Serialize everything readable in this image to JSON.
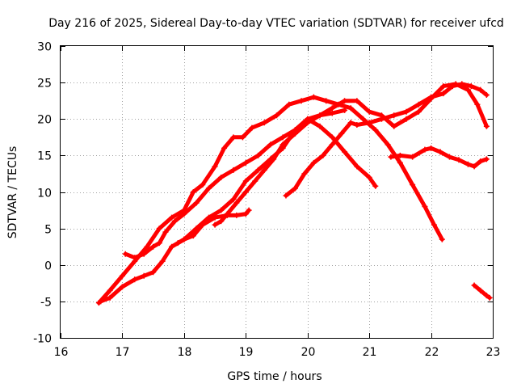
{
  "chart_data": {
    "type": "scatter",
    "title": "Day 216 of 2025, Sidereal Day-to-day VTEC variation (SDTVAR) for receiver ufcd",
    "xlabel": "GPS time / hours",
    "ylabel": "SDTVAR / TECUs",
    "xlim": [
      16,
      23
    ],
    "ylim": [
      -10,
      30
    ],
    "xticks": [
      16,
      17,
      18,
      19,
      20,
      21,
      22,
      23
    ],
    "yticks": [
      -10,
      -5,
      0,
      5,
      10,
      15,
      20,
      25,
      30
    ],
    "grid": true,
    "marker": "+",
    "color": "#ff0000",
    "series": [
      {
        "name": "arc1",
        "x": [
          16.62,
          16.8,
          17.0,
          17.2,
          17.4,
          17.6,
          17.8,
          18.0,
          18.15,
          18.3,
          18.5,
          18.65,
          18.8,
          18.95,
          19.1,
          19.3,
          19.5,
          19.7,
          19.9,
          20.1,
          20.3,
          20.5,
          20.7,
          20.9,
          21.1,
          21.3,
          21.5,
          21.7,
          21.9,
          22.05,
          22.18
        ],
        "y": [
          -5.2,
          -3.5,
          -1.5,
          0.5,
          2.5,
          5.0,
          6.5,
          7.5,
          10.0,
          11.0,
          13.5,
          16.0,
          17.5,
          17.5,
          18.8,
          19.5,
          20.5,
          22.0,
          22.5,
          23.0,
          22.5,
          22.0,
          21.5,
          20.0,
          18.5,
          16.5,
          14.0,
          11.0,
          8.0,
          5.5,
          3.5
        ]
      },
      {
        "name": "arc2",
        "x": [
          16.65,
          16.8,
          17.0,
          17.2,
          17.35,
          17.5,
          17.65,
          17.8,
          18.0,
          18.2,
          18.4,
          18.6,
          18.8,
          19.0,
          19.2,
          19.4,
          19.6,
          19.8,
          20.0,
          20.2,
          20.4,
          20.6,
          20.8,
          21.0,
          21.2,
          21.4,
          21.6,
          21.8,
          22.0,
          22.2,
          22.4,
          22.6,
          22.75,
          22.9
        ],
        "y": [
          -5.0,
          -4.5,
          -3.0,
          -2.0,
          -1.5,
          -1.0,
          0.5,
          2.5,
          3.5,
          5.0,
          6.5,
          7.5,
          9.0,
          11.5,
          13.0,
          14.5,
          16.0,
          18.5,
          20.0,
          20.5,
          21.5,
          22.5,
          22.5,
          21.0,
          20.5,
          19.0,
          20.0,
          21.0,
          22.8,
          24.5,
          24.8,
          24.0,
          22.0,
          19.0
        ]
      },
      {
        "name": "arc3",
        "x": [
          17.05,
          17.2,
          17.35,
          17.5,
          17.6,
          17.7,
          17.85,
          18.0,
          18.2,
          18.4,
          18.6,
          18.8,
          19.0,
          19.2,
          19.4,
          19.6,
          19.8,
          20.0,
          20.2,
          20.4,
          20.6,
          20.8,
          21.0,
          21.1
        ],
        "y": [
          1.5,
          1.0,
          1.5,
          2.5,
          3.0,
          4.5,
          6.0,
          7.0,
          8.5,
          10.5,
          12.0,
          13.0,
          14.0,
          15.0,
          16.5,
          17.5,
          18.5,
          20.0,
          19.0,
          17.5,
          15.5,
          13.5,
          12.0,
          10.8
        ]
      },
      {
        "name": "arc4",
        "x": [
          17.9,
          18.0,
          18.15,
          18.3,
          18.5,
          18.7,
          18.85,
          19.0,
          19.05
        ],
        "y": [
          3.0,
          3.5,
          4.0,
          5.5,
          6.5,
          6.8,
          6.8,
          7.0,
          7.5
        ]
      },
      {
        "name": "arc5",
        "x": [
          18.5,
          18.6,
          18.7,
          18.85,
          19.0,
          19.15,
          19.3,
          19.45,
          19.6,
          19.8,
          20.0,
          20.2,
          20.4,
          20.6
        ],
        "y": [
          5.5,
          6.0,
          7.0,
          8.5,
          10.0,
          11.5,
          13.0,
          14.5,
          16.5,
          18.0,
          19.5,
          20.5,
          20.8,
          21.2
        ]
      },
      {
        "name": "arc6",
        "x": [
          19.65,
          19.8,
          19.95,
          20.1,
          20.25,
          20.4,
          20.55,
          20.7,
          20.8,
          21.0,
          21.2,
          21.4,
          21.6,
          21.8,
          22.0,
          22.2,
          22.35,
          22.5,
          22.65,
          22.8,
          22.9
        ],
        "y": [
          9.5,
          10.5,
          12.5,
          14.0,
          15.0,
          16.5,
          18.0,
          19.5,
          19.2,
          19.5,
          20.0,
          20.5,
          21.0,
          22.0,
          23.0,
          23.5,
          24.5,
          24.8,
          24.5,
          24.0,
          23.3
        ]
      },
      {
        "name": "arc7",
        "x": [
          21.35,
          21.5,
          21.7,
          21.9,
          22.0,
          22.15,
          22.3,
          22.45,
          22.6,
          22.7,
          22.8,
          22.9
        ],
        "y": [
          14.8,
          15.0,
          14.8,
          15.8,
          16.0,
          15.5,
          14.8,
          14.4,
          13.8,
          13.5,
          14.2,
          14.5
        ]
      },
      {
        "name": "arc8",
        "x": [
          22.7,
          22.8,
          22.9,
          22.95
        ],
        "y": [
          -2.8,
          -3.5,
          -4.2,
          -4.5
        ]
      }
    ]
  }
}
